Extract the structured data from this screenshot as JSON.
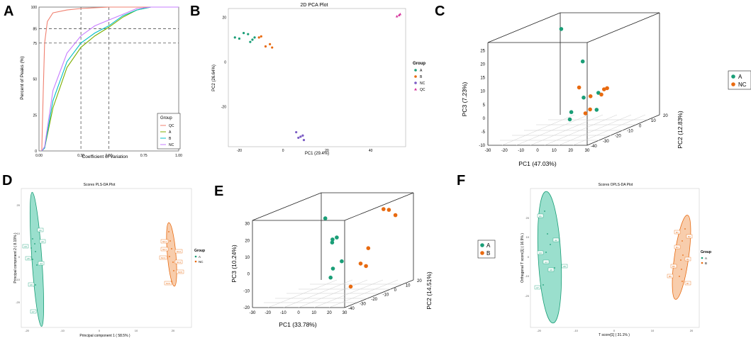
{
  "colors": {
    "A": "#1a9e77",
    "NC": "#e86a10",
    "B": "#e86a10",
    "QC": "#d6339b",
    "NCpca": "#7b5cc4",
    "ecA": "#1a9e77",
    "ecB": "#e8821e",
    "ecNC": "#c879e0",
    "ecQC": "#f08070"
  },
  "panels": {
    "A": "A",
    "B": "B",
    "C": "C",
    "D": "D",
    "E": "E",
    "F": "F"
  },
  "chart_data": [
    {
      "panel": "A",
      "type": "line",
      "xlabel": "Coefficient of Variation",
      "ylabel": "Percent of Peaks (%)",
      "xlim": [
        0,
        1
      ],
      "ylim": [
        0,
        100
      ],
      "xticks": [
        "0.00",
        "0.30",
        "0.50",
        "0.75",
        "1.00"
      ],
      "yticks": [
        "0",
        "25",
        "50",
        "75",
        "85",
        "100"
      ],
      "vlines": [
        0.3,
        0.5
      ],
      "hlines": [
        75,
        85
      ],
      "legend": {
        "title": "Group",
        "items": [
          "QC",
          "A",
          "B",
          "NC"
        ]
      },
      "series": [
        {
          "name": "QC",
          "x": [
            0.02,
            0.03,
            0.04,
            0.06,
            0.1,
            0.2,
            0.3,
            0.5,
            0.7,
            1.0
          ],
          "y": [
            0,
            40,
            75,
            90,
            96,
            98,
            99,
            100,
            100,
            100
          ]
        },
        {
          "name": "A",
          "x": [
            0.02,
            0.04,
            0.1,
            0.2,
            0.3,
            0.4,
            0.5,
            0.6,
            0.7,
            0.8,
            1.0
          ],
          "y": [
            0,
            2,
            30,
            58,
            72,
            80,
            86,
            93,
            98,
            100,
            100
          ]
        },
        {
          "name": "B",
          "x": [
            0.02,
            0.04,
            0.1,
            0.2,
            0.3,
            0.4,
            0.5,
            0.6,
            0.7,
            0.8,
            1.0
          ],
          "y": [
            0,
            2,
            35,
            62,
            75,
            82,
            87,
            94,
            98,
            100,
            100
          ]
        },
        {
          "name": "NC",
          "x": [
            0.02,
            0.04,
            0.1,
            0.2,
            0.3,
            0.4,
            0.5,
            0.6,
            0.7,
            0.8,
            1.0
          ],
          "y": [
            0,
            3,
            42,
            68,
            80,
            87,
            91,
            95,
            99,
            100,
            100
          ]
        }
      ]
    },
    {
      "panel": "B",
      "type": "scatter",
      "title": "2D PCA Plot",
      "xlabel": "PC1 (29.4%)",
      "ylabel": "PC2 (26.64%)",
      "xlim": [
        -25,
        56
      ],
      "ylim": [
        -38,
        24
      ],
      "xticks": [
        -20,
        0,
        20,
        40
      ],
      "yticks": [
        -20,
        0,
        20
      ],
      "legend": {
        "title": "Group",
        "items": [
          "A",
          "B",
          "NC",
          "QC"
        ]
      },
      "series": [
        {
          "name": "A",
          "points": [
            [
              -22,
              11
            ],
            [
              -20,
              10.5
            ],
            [
              -18,
              13
            ],
            [
              -16,
              12.5
            ],
            [
              -15,
              9
            ],
            [
              -14,
              10
            ],
            [
              -13,
              11
            ]
          ]
        },
        {
          "name": "B",
          "points": [
            [
              -11,
              11
            ],
            [
              -10,
              11.5
            ],
            [
              -8,
              7
            ],
            [
              -6,
              8
            ],
            [
              -5,
              6.5
            ]
          ]
        },
        {
          "name": "NC",
          "points": [
            [
              6,
              -31.5
            ],
            [
              7,
              -34
            ],
            [
              8,
              -33.5
            ],
            [
              9,
              -33
            ],
            [
              9.5,
              -35
            ]
          ]
        },
        {
          "name": "QC",
          "points": [
            [
              52,
              20.5
            ],
            [
              53,
              21
            ],
            [
              53.5,
              21.5
            ]
          ]
        }
      ]
    },
    {
      "panel": "C",
      "type": "scatter",
      "mode": "3d",
      "xlabel": "PC1 (47.03%)",
      "ylabel": "PC2 (12.83%)",
      "zlabel": "PC3 (7.23%)",
      "xticks": [
        -30,
        -20,
        -10,
        0,
        10,
        20,
        30
      ],
      "yticks": [
        -40,
        -30,
        -20,
        -10,
        0,
        10,
        20
      ],
      "zticks": [
        -10,
        -5,
        0,
        5,
        10,
        15,
        20,
        25
      ],
      "legend": {
        "items": [
          "A",
          "NC"
        ]
      },
      "series": [
        {
          "name": "A",
          "points": [
            [
              -9,
              -8,
              27
            ],
            [
              -6,
              -5,
              -7
            ],
            [
              0,
              -12,
              -3
            ],
            [
              4,
              -8,
              15
            ],
            [
              6,
              -10,
              2
            ],
            [
              12,
              -6,
              3
            ],
            [
              8,
              -2,
              -4
            ]
          ]
        },
        {
          "name": "NC",
          "points": [
            [
              12,
              -22,
              8
            ],
            [
              16,
              -18,
              4
            ],
            [
              18,
              -25,
              -1
            ],
            [
              22,
              -15,
              6
            ],
            [
              24,
              -20,
              5
            ],
            [
              26,
              -18,
              7
            ],
            [
              23,
              -28,
              1
            ]
          ]
        }
      ]
    },
    {
      "panel": "D",
      "type": "scatter",
      "title": "Scores PLS-DA Plot",
      "xlabel": "Principal component 1 ( 58.5% )",
      "ylabel": "Principal component 2 ( 8.19% )",
      "xticks": [
        -20,
        -10,
        0,
        10,
        20
      ],
      "yticks": [
        -20,
        -10,
        0,
        10,
        20
      ],
      "legend": {
        "title": "Group",
        "items": [
          "A",
          "NC"
        ]
      },
      "series": [
        {
          "name": "A",
          "labels": [
            "A1",
            "A2",
            "A3",
            "A4",
            "A5",
            "A6",
            "A7"
          ]
        },
        {
          "name": "NC",
          "labels": [
            "NC1",
            "NC2",
            "NC3",
            "NC4",
            "NC5",
            "NC6",
            "NC7"
          ]
        }
      ]
    },
    {
      "panel": "E",
      "type": "scatter",
      "mode": "3d",
      "xlabel": "PC1 (33.78%)",
      "ylabel": "PC2 (14.51%)",
      "zlabel": "PC3 (10.24%)",
      "xticks": [
        -30,
        -20,
        -10,
        0,
        10,
        20,
        30
      ],
      "yticks": [
        -40,
        -30,
        -20,
        -10,
        0,
        10,
        20
      ],
      "zticks": [
        -20,
        -10,
        0,
        10,
        20,
        30
      ],
      "legend": {
        "items": [
          "A",
          "B"
        ]
      },
      "series": [
        {
          "name": "A",
          "points": [
            [
              -5,
              -10,
              25
            ],
            [
              -4,
              -5,
              11
            ],
            [
              -2,
              -8,
              10
            ],
            [
              0,
              -10,
              -5
            ],
            [
              2,
              -5,
              -2
            ],
            [
              -6,
              -4,
              -12
            ],
            [
              1,
              -8,
              13
            ]
          ]
        },
        {
          "name": "B",
          "points": [
            [
              18,
              10,
              25
            ],
            [
              20,
              12,
              24
            ],
            [
              22,
              15,
              20
            ],
            [
              17,
              -2,
              5
            ],
            [
              18,
              -10,
              -2
            ],
            [
              20,
              -8,
              -4
            ],
            [
              19,
              -20,
              -13
            ]
          ]
        }
      ]
    },
    {
      "panel": "F",
      "type": "scatter",
      "title": "Scores OPLS-DA Plot",
      "xlabel": "T score[1] ( 31.1% )",
      "ylabel": "Orthogonal T score[1] ( 16.9% )",
      "xticks": [
        -20,
        -10,
        0,
        10,
        20
      ],
      "yticks": [
        -20,
        -10,
        0,
        10,
        20
      ],
      "legend": {
        "title": "Group",
        "items": [
          "A",
          "B"
        ]
      },
      "series": [
        {
          "name": "A",
          "labels": [
            "A1",
            "A2",
            "A3",
            "A4",
            "A5",
            "A6",
            "A7"
          ]
        },
        {
          "name": "B",
          "labels": [
            "B1",
            "B2",
            "B3",
            "B4",
            "B5",
            "B6",
            "B7"
          ]
        }
      ]
    }
  ]
}
